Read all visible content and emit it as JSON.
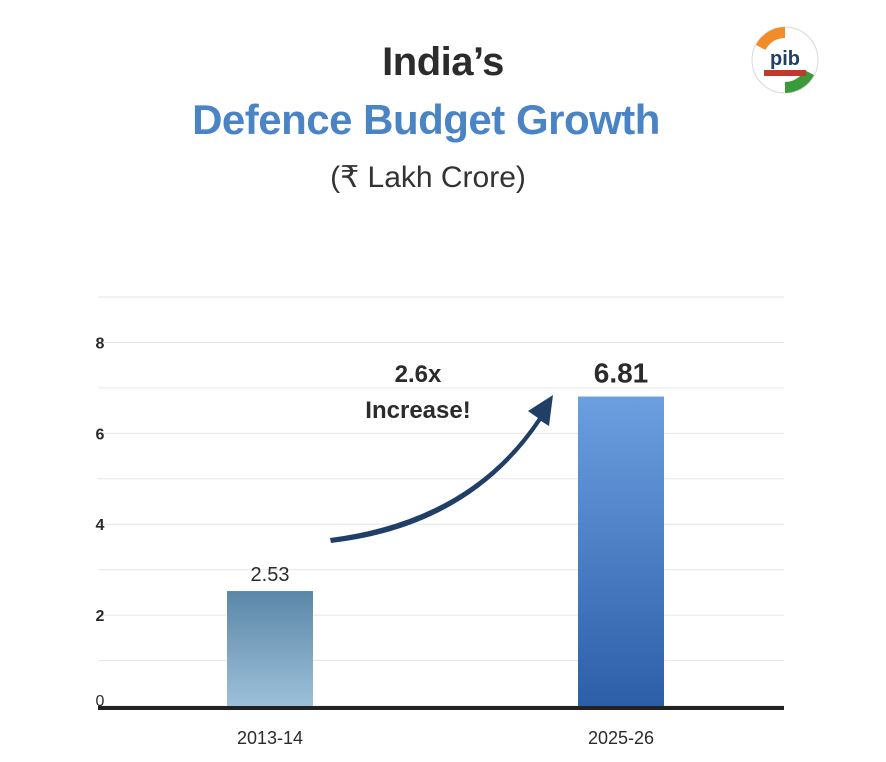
{
  "header": {
    "title_line1": "India’s",
    "title_line2": "Defence Budget Growth",
    "subtitle": "(₹ Lakh Crore)",
    "logo_label": "pib"
  },
  "colors": {
    "title": "#2b2b2b",
    "accent": "#4a84c4",
    "arrow": "#1f3f66",
    "bar1_top": "#5b87a8",
    "bar1_bottom": "#9cc0d9",
    "bar2_top": "#6b9fe0",
    "bar2_bottom": "#2d5ea8"
  },
  "chart_data": {
    "type": "bar",
    "title": "India’s Defence Budget Growth",
    "subtitle": "(₹ Lakh Crore)",
    "categories": [
      "2013-14",
      "2025-26"
    ],
    "values": [
      2.53,
      6.81
    ],
    "value_labels": [
      "2.53",
      "6.81"
    ],
    "ylim": [
      0,
      9
    ],
    "yticks": [
      0,
      2,
      4,
      6,
      8
    ],
    "ytick_labels": [
      "0",
      "2",
      "4",
      "6",
      "8"
    ],
    "grid": true,
    "xlabel": "",
    "ylabel": "",
    "annotation": {
      "line1": "2.6x",
      "line2": "Increase!"
    }
  }
}
